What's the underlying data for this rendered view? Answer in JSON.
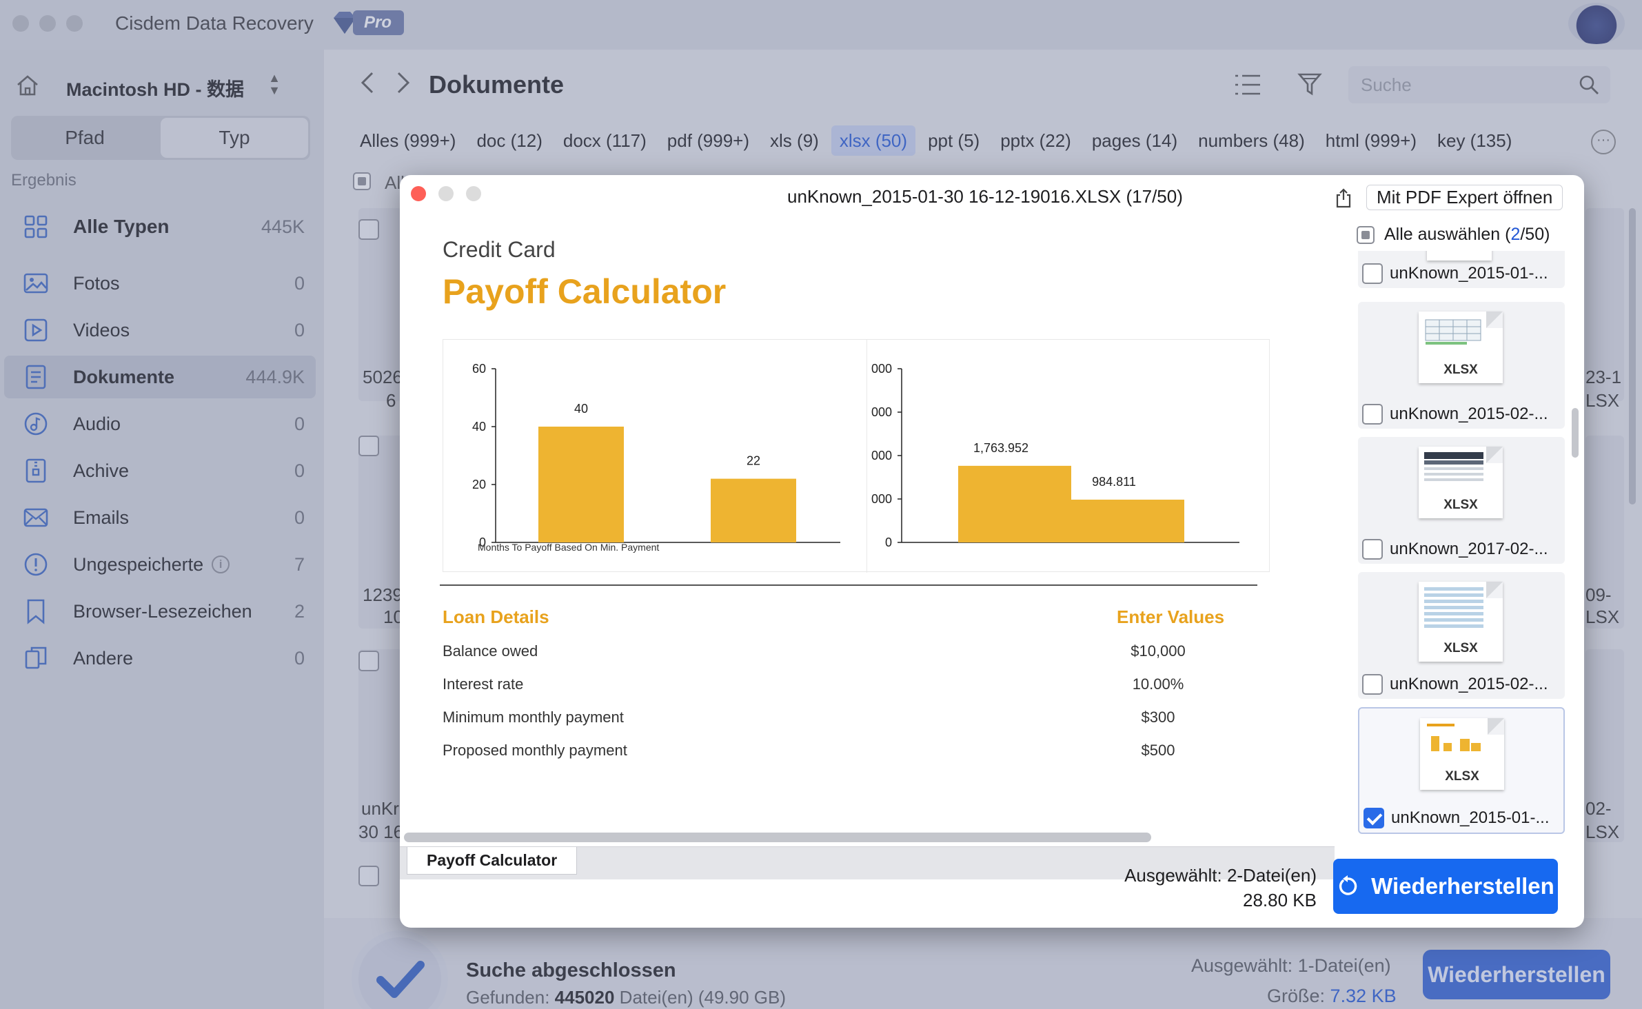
{
  "app": {
    "title": "Cisdem Data Recovery",
    "pro_label": "Pro"
  },
  "sidebar": {
    "disk_name": "Macintosh  HD - 数据",
    "segments": [
      "Pfad",
      "Typ"
    ],
    "active_segment": "Typ",
    "result_label": "Ergebnis",
    "items": [
      {
        "label": "Alle Typen",
        "count": "445K",
        "icon": "grid-icon"
      },
      {
        "label": "Fotos",
        "count": "0",
        "icon": "photo-icon"
      },
      {
        "label": "Videos",
        "count": "0",
        "icon": "video-icon"
      },
      {
        "label": "Dokumente",
        "count": "444.9K",
        "icon": "document-icon"
      },
      {
        "label": "Audio",
        "count": "0",
        "icon": "audio-icon"
      },
      {
        "label": "Achive",
        "count": "0",
        "icon": "archive-icon"
      },
      {
        "label": "Emails",
        "count": "0",
        "icon": "email-icon"
      },
      {
        "label": "Ungespeicherte",
        "count": "7",
        "icon": "unsaved-icon"
      },
      {
        "label": "Browser-Lesezeichen",
        "count": "2",
        "icon": "bookmark-icon"
      },
      {
        "label": "Andere",
        "count": "0",
        "icon": "other-icon"
      }
    ]
  },
  "toolbar": {
    "title": "Dokumente",
    "search_placeholder": "Suche"
  },
  "filetype_tabs": [
    "Alles (999+)",
    "doc (12)",
    "docx (117)",
    "pdf (999+)",
    "xls (9)",
    "xlsx (50)",
    "ppt (5)",
    "pptx (22)",
    "pages (14)",
    "numbers (48)",
    "html (999+)",
    "key (135)"
  ],
  "active_filetype": "xlsx (50)",
  "background_grid": {
    "all_label": "All",
    "left_snippets": [
      "5026",
      "6",
      "1239",
      "10",
      "unKr",
      "30 16"
    ],
    "right_snippets": [
      "23-1",
      "LSX",
      "09-",
      "LSX",
      "02-",
      "LSX"
    ]
  },
  "statusbar": {
    "title": "Suche abgeschlossen",
    "found_prefix": "Gefunden:",
    "found_count": "445020",
    "found_unit": "Datei(en)",
    "found_size": "(49.90 GB)",
    "selected": "Ausgewählt: 1-Datei(en)",
    "size_prefix": "Größe:",
    "size_value": "7.32 KB",
    "restore_label": "Wiederherstellen"
  },
  "dialog": {
    "title": "unKnown_2015-01-30 16-12-19016.XLSX (17/50)",
    "open_with": "Mit PDF Expert öffnen",
    "select_all_prefix": "Alle auswählen (",
    "select_all_num": "2",
    "select_all_suffix": "/50)",
    "selected_info_line1": "Ausgewählt: 2-Datei(en)",
    "selected_info_line2": "28.80 KB",
    "restore_label": "Wiederherstellen",
    "sheet_tab": "Payoff Calculator"
  },
  "sheet": {
    "subtitle": "Credit Card",
    "title": "Payoff Calculator",
    "loan_heading": "Loan Details",
    "values_heading": "Enter Values",
    "rows": [
      {
        "label": "Balance owed",
        "value": "$10,000"
      },
      {
        "label": "Interest rate",
        "value": "10.00%"
      },
      {
        "label": "Minimum monthly payment",
        "value": "$300"
      },
      {
        "label": "Proposed monthly payment",
        "value": "$500"
      }
    ],
    "accent_color": "#e8a21d"
  },
  "chart_data": [
    {
      "type": "bar",
      "categories": [
        "",
        ""
      ],
      "values": [
        40,
        22
      ],
      "data_labels": [
        "40",
        "22"
      ],
      "xlabel": "Months To Payoff Based On Min. Payment",
      "ylim": [
        0,
        60
      ],
      "yticks": [
        "0",
        "20",
        "40",
        "60"
      ],
      "color": "#eeb431"
    },
    {
      "type": "bar",
      "categories": [
        "",
        ""
      ],
      "values": [
        1763.952,
        984.811
      ],
      "data_labels": [
        "1,763.952",
        "984.811"
      ],
      "ylim": [
        0,
        4000
      ],
      "yticks": [
        "0",
        "000",
        "000",
        "000",
        "000"
      ],
      "color": "#eeb431"
    }
  ],
  "thumbnails": [
    {
      "name": "unKnown_2015-01-...",
      "checked": false,
      "ext": ""
    },
    {
      "name": "unKnown_2015-02-...",
      "checked": false,
      "ext": "XLSX"
    },
    {
      "name": "unKnown_2017-02-...",
      "checked": false,
      "ext": "XLSX"
    },
    {
      "name": "unKnown_2015-02-...",
      "checked": false,
      "ext": "XLSX"
    },
    {
      "name": "unKnown_2015-01-...",
      "checked": true,
      "ext": "XLSX"
    }
  ]
}
